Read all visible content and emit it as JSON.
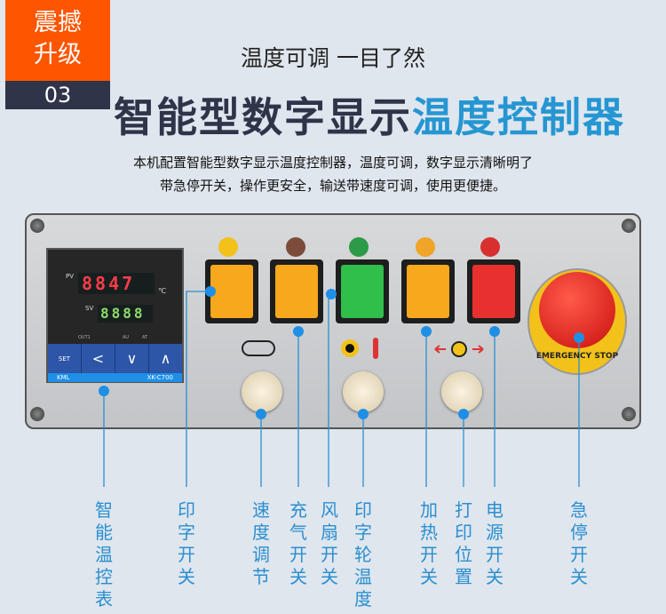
{
  "badge": {
    "text_line1": "震撼",
    "text_line2": "升级",
    "number": "03"
  },
  "subtitle": "温度可调 一目了然",
  "title": {
    "dark": "智能型数字显示",
    "blue": "温度控制器"
  },
  "description": [
    "本机配置智能型数字显示温度控制器，温度可调，数字显示清晰明了",
    "带急停开关，操作更安全，输送带速度可调，使用更便捷。"
  ],
  "controller": {
    "pv_label": "PV",
    "pv_value": "8847",
    "unit": "℃",
    "sv_label": "SV",
    "sv_value": "8888",
    "indicators": [
      "OUT1",
      "AU",
      "AT"
    ],
    "buttons": [
      "SET",
      "<",
      "∨",
      "∧"
    ],
    "brand": "KML",
    "model": "XK-C700"
  },
  "estop_text": "EMERGENCY STOP",
  "switch_colors": {
    "amber": "#f7a81c",
    "green": "#2fbf4a",
    "red": "#e8302f"
  },
  "accent": "#2596d2",
  "labels": [
    "智能温控表",
    "印字开关",
    "速度调节",
    "充气开关",
    "风扇开关",
    "印字轮温度",
    "加热开关",
    "打印位置",
    "电源开关",
    "急停开关"
  ]
}
